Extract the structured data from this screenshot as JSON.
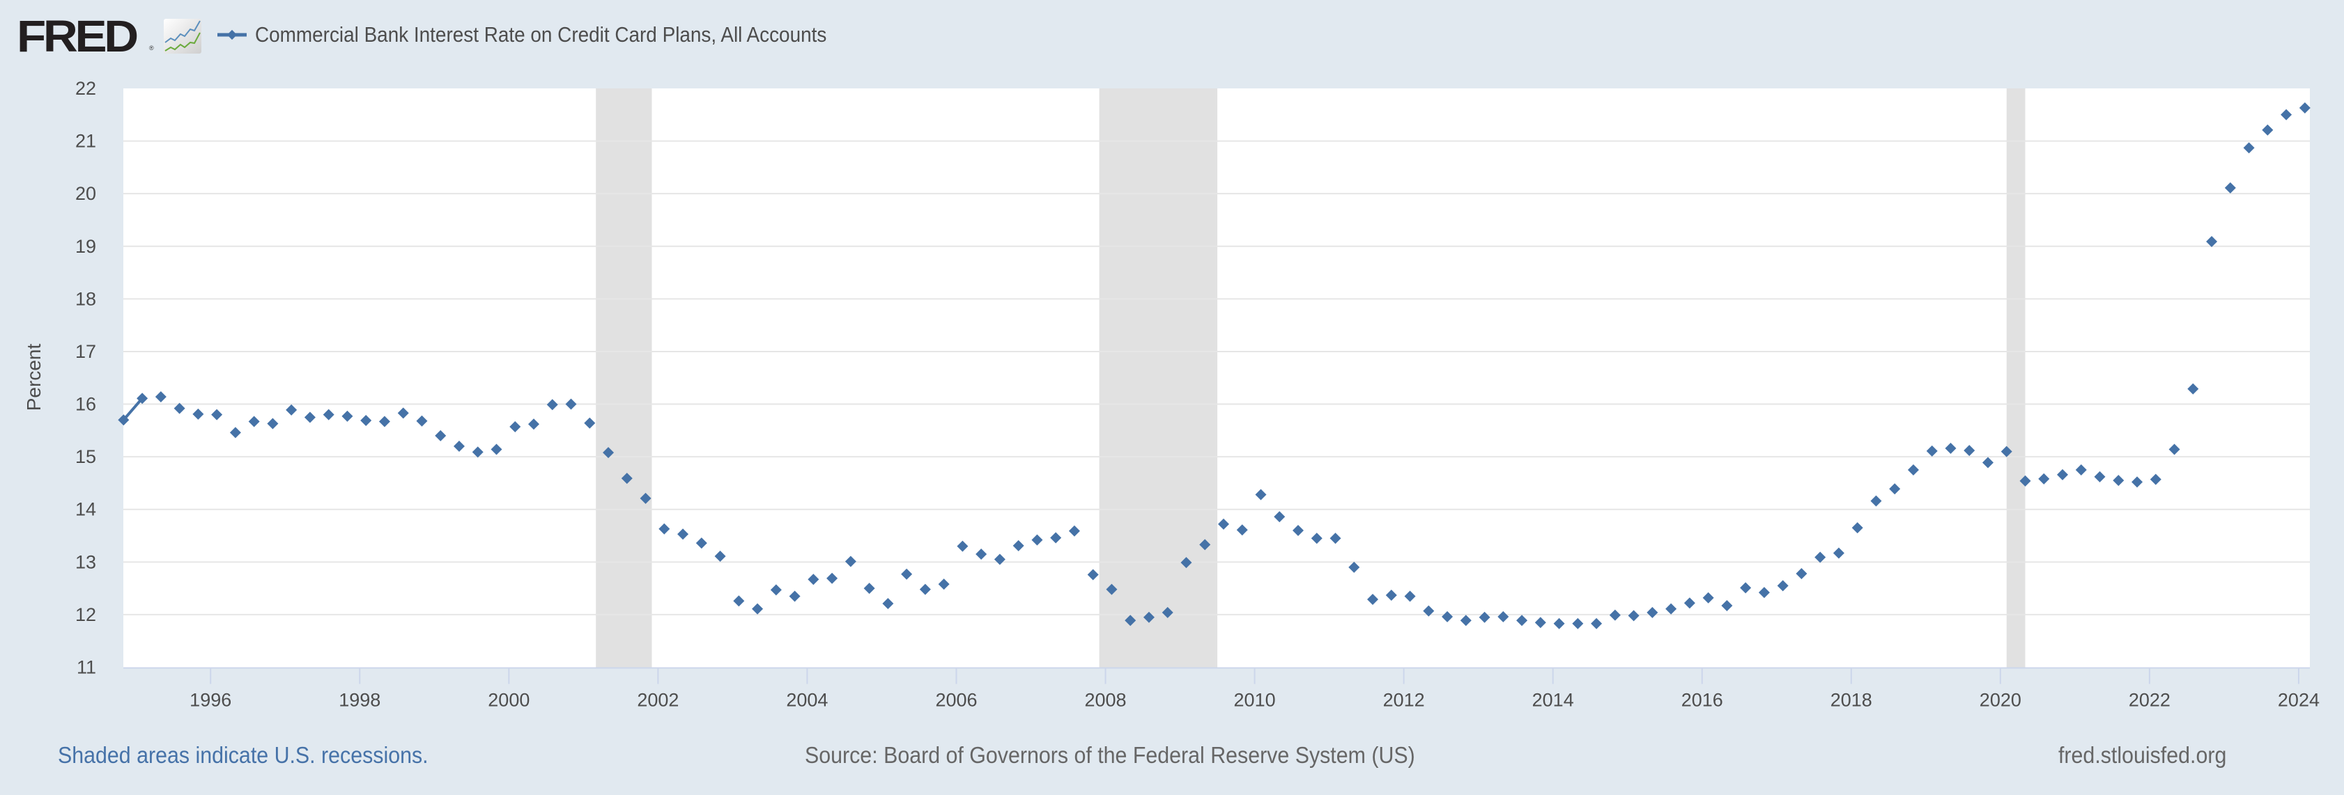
{
  "header": {
    "logo_text": "FRED",
    "logo_registered": "®",
    "legend_label": "Commercial Bank Interest Rate on Credit Card Plans, All Accounts"
  },
  "footer": {
    "recession_note": "Shaded areas indicate U.S. recessions.",
    "source": "Source: Board of Governors of the Federal Reserve System (US)",
    "site": "fred.stlouisfed.org"
  },
  "colors": {
    "series": "#4572a7",
    "background": "#e1e9f0",
    "plot_bg": "#ffffff",
    "recession": "#e1e1e1",
    "grid": "#e6e6e6"
  },
  "chart_data": {
    "type": "scatter",
    "title": "Commercial Bank Interest Rate on Credit Card Plans, All Accounts",
    "xlabel": "",
    "ylabel": "Percent",
    "xlim": [
      1994.83,
      2024.15
    ],
    "ylim": [
      11,
      22
    ],
    "x_ticks": [
      "1996",
      "1998",
      "2000",
      "2002",
      "2004",
      "2006",
      "2008",
      "2010",
      "2012",
      "2014",
      "2016",
      "2018",
      "2020",
      "2022",
      "2024"
    ],
    "y_ticks": [
      "11",
      "12",
      "13",
      "14",
      "15",
      "16",
      "17",
      "18",
      "19",
      "20",
      "21",
      "22"
    ],
    "grid": true,
    "legend": "top-left",
    "frequency": "quarterly",
    "recessions": [
      {
        "start": "2001-03",
        "end": "2001-11"
      },
      {
        "start": "2007-12",
        "end": "2009-06"
      },
      {
        "start": "2020-02",
        "end": "2020-04"
      }
    ],
    "series": [
      {
        "name": "Commercial Bank Interest Rate on Credit Card Plans, All Accounts",
        "start": "1994-11",
        "step_months": 3,
        "values": [
          15.7,
          16.11,
          16.14,
          15.92,
          15.81,
          15.8,
          15.46,
          15.67,
          15.63,
          15.89,
          15.75,
          15.8,
          15.77,
          15.69,
          15.67,
          15.83,
          15.68,
          15.4,
          15.2,
          15.09,
          15.14,
          15.57,
          15.62,
          15.99,
          16.0,
          15.64,
          15.08,
          14.59,
          14.21,
          13.63,
          13.53,
          13.36,
          13.11,
          12.26,
          12.11,
          12.47,
          12.35,
          12.67,
          12.69,
          13.01,
          12.5,
          12.21,
          12.77,
          12.48,
          12.58,
          13.3,
          13.15,
          13.05,
          13.31,
          13.42,
          13.46,
          13.59,
          12.76,
          12.48,
          11.89,
          11.95,
          12.04,
          12.99,
          13.33,
          13.72,
          13.61,
          14.28,
          13.86,
          13.6,
          13.45,
          13.45,
          12.9,
          12.29,
          12.37,
          12.35,
          12.07,
          11.96,
          11.89,
          11.95,
          11.96,
          11.89,
          11.85,
          11.83,
          11.83,
          11.83,
          11.99,
          11.98,
          12.04,
          12.11,
          12.22,
          12.32,
          12.17,
          12.51,
          12.42,
          12.55,
          12.78,
          13.09,
          13.17,
          13.65,
          14.16,
          14.39,
          14.75,
          15.11,
          15.16,
          15.12,
          14.89,
          15.1,
          14.54,
          14.58,
          14.66,
          14.75,
          14.62,
          14.55,
          14.52,
          14.57,
          15.14,
          16.29,
          19.09,
          20.11,
          20.87,
          21.21,
          21.5,
          21.63
        ],
        "connected_segments": [
          [
            0,
            1
          ]
        ]
      }
    ]
  }
}
